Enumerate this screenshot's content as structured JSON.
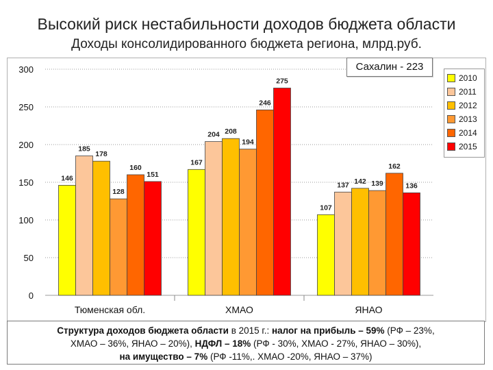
{
  "slide": {
    "title": "Высокий риск нестабильности доходов бюджета области",
    "subtitle": "Доходы консолидированного бюджета региона, млрд.руб."
  },
  "callout": {
    "text": "Сахалин - 223"
  },
  "note": {
    "line1": {
      "a": "Структура доходов бюджета области",
      "b": " в 2015 г.: ",
      "c": "налог на прибыль – 59%",
      "d": " (РФ – 23%,"
    },
    "line2": {
      "a": "ХМАО – 36%, ЯНАО – 20%), ",
      "b": "НДФЛ – 18%",
      "c": " (РФ - 30%, ХМАО - 27%, ЯНАО – 30%),"
    },
    "line3": {
      "a": "на имущество – 7%",
      "b": " (РФ -11%,. ХМАО -20%, ЯНАО – 37%)"
    }
  },
  "colors": {
    "2010": "#ffff00",
    "2011": "#fcc69a",
    "2012": "#ffbf00",
    "2013": "#ff9933",
    "2014": "#ff6600",
    "2015": "#ff0000"
  },
  "chart_data": {
    "type": "bar",
    "title": "",
    "xlabel": "",
    "ylabel": "",
    "ylim": [
      0,
      300
    ],
    "yticks": [
      0,
      50,
      100,
      150,
      200,
      250,
      300
    ],
    "grid": true,
    "legend_position": "right",
    "categories": [
      "Тюменская обл.",
      "ХМАО",
      "ЯНАО"
    ],
    "series": [
      {
        "name": "2010",
        "values": [
          146,
          167,
          107
        ]
      },
      {
        "name": "2011",
        "values": [
          185,
          204,
          137
        ]
      },
      {
        "name": "2012",
        "values": [
          178,
          208,
          142
        ]
      },
      {
        "name": "2013",
        "values": [
          128,
          194,
          139
        ]
      },
      {
        "name": "2014",
        "values": [
          160,
          246,
          162
        ]
      },
      {
        "name": "2015",
        "values": [
          151,
          275,
          136
        ]
      }
    ]
  }
}
